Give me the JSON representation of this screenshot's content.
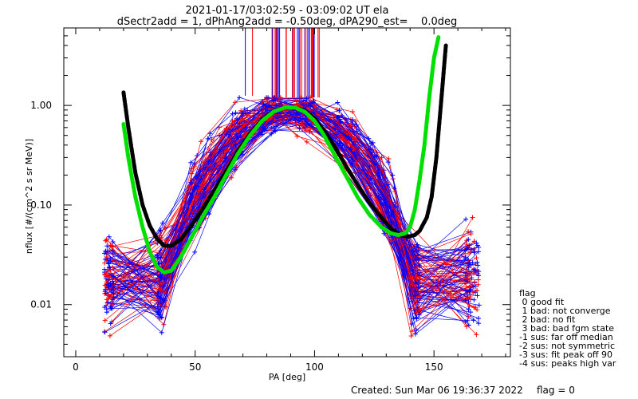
{
  "chart_data": {
    "type": "line",
    "title": "2021-01-17/03:02:59 - 03:09:02 UT ela",
    "subtitle": "dSectr2add = 1, dPhAng2add = -0.50deg, dPA290_est=    0.0deg",
    "xlabel": "PA [deg]",
    "ylabel": "nflux [#/(cm^2 s sr MeV)]",
    "xlim": [
      -5,
      182
    ],
    "ylim": [
      0.003,
      6.0
    ],
    "yscale": "log",
    "x_ticks": [
      0,
      50,
      100,
      150
    ],
    "x_tick_labels": [
      "0",
      "50",
      "100",
      "150"
    ],
    "y_ticks": [
      0.01,
      0.1,
      1.0
    ],
    "y_tick_labels": [
      "0.01",
      "0.10",
      "1.00"
    ],
    "grid": false,
    "series": [
      {
        "color": "#000000",
        "x": [
          20,
          22,
          25,
          28,
          31,
          34,
          37,
          40,
          44,
          48,
          53,
          58,
          63,
          68,
          73,
          78,
          83,
          88,
          92,
          96,
          100,
          104,
          108,
          113,
          118,
          123,
          128,
          132,
          136,
          139,
          142,
          144,
          147,
          149,
          151,
          153,
          155
        ],
        "y": [
          1.35,
          0.6,
          0.21,
          0.1,
          0.062,
          0.046,
          0.039,
          0.039,
          0.045,
          0.06,
          0.09,
          0.14,
          0.22,
          0.35,
          0.52,
          0.72,
          0.88,
          0.96,
          0.95,
          0.88,
          0.74,
          0.56,
          0.4,
          0.25,
          0.16,
          0.105,
          0.075,
          0.058,
          0.05,
          0.048,
          0.05,
          0.055,
          0.075,
          0.12,
          0.3,
          1.1,
          4.0
        ]
      },
      {
        "color": "#00e000",
        "x": [
          20,
          22,
          25,
          28,
          31,
          34,
          37,
          40,
          44,
          48,
          53,
          58,
          63,
          68,
          73,
          78,
          83,
          88,
          92,
          96,
          100,
          104,
          108,
          113,
          118,
          123,
          128,
          132,
          135,
          138,
          140,
          142,
          144,
          146,
          148,
          150,
          152
        ],
        "y": [
          0.65,
          0.3,
          0.12,
          0.06,
          0.034,
          0.024,
          0.021,
          0.022,
          0.03,
          0.045,
          0.075,
          0.12,
          0.2,
          0.33,
          0.5,
          0.7,
          0.87,
          0.96,
          0.95,
          0.86,
          0.7,
          0.5,
          0.33,
          0.2,
          0.12,
          0.08,
          0.06,
          0.052,
          0.05,
          0.052,
          0.06,
          0.09,
          0.18,
          0.4,
          1.2,
          3.0,
          5.0
        ]
      }
    ],
    "legend": {
      "title": "flag",
      "entries": [
        " 0 good fit",
        " 1 bad: not converge",
        " 2 bad: no fit",
        " 3 bad: bad fgm state",
        "-1 sus: far off median",
        "-2 sus: not symmetric",
        "-3 sus: fit peak off 90",
        "-4 sus: peaks high var"
      ],
      "position": "right"
    },
    "annotations": [
      "Created: Sun Mar 06 19:36:37 2022",
      "flag = 0"
    ],
    "curve_colors": {
      "red": "#ff0000",
      "blue": "#0000ff",
      "black": "#000000",
      "green": "#00e000"
    }
  }
}
